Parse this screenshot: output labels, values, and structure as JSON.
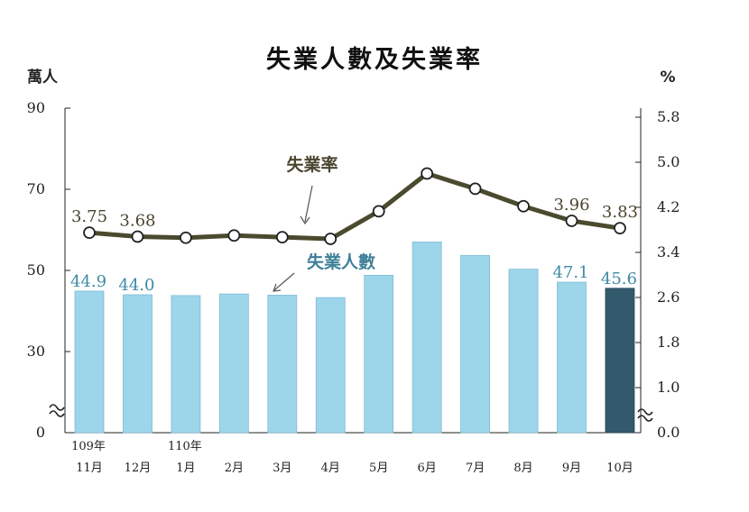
{
  "chart_data": {
    "type": "bar",
    "title": "失業人數及失業率",
    "ylabel_left": "萬人",
    "ylabel_right": "%",
    "left_axis": {
      "ylim": [
        0,
        90
      ],
      "ticks": [
        "0",
        "30",
        "50",
        "70",
        "90"
      ],
      "break": true
    },
    "right_axis": {
      "ylim": [
        0.0,
        5.8
      ],
      "ticks": [
        "0.0",
        "1.0",
        "1.8",
        "2.6",
        "3.4",
        "4.2",
        "5.0",
        "5.8"
      ],
      "break": true
    },
    "categories": [
      {
        "year": "109年",
        "month": "11月"
      },
      {
        "year": "",
        "month": "12月"
      },
      {
        "year": "110年",
        "month": "1月"
      },
      {
        "year": "",
        "month": "2月"
      },
      {
        "year": "",
        "month": "3月"
      },
      {
        "year": "",
        "month": "4月"
      },
      {
        "year": "",
        "month": "5月"
      },
      {
        "year": "",
        "month": "6月"
      },
      {
        "year": "",
        "month": "7月"
      },
      {
        "year": "",
        "month": "8月"
      },
      {
        "year": "",
        "month": "9月"
      },
      {
        "year": "",
        "month": "10月"
      }
    ],
    "series": [
      {
        "name": "失業人數",
        "type": "bar",
        "axis": "left",
        "values": [
          44.9,
          44.0,
          43.8,
          44.2,
          43.9,
          43.3,
          48.8,
          57.0,
          53.7,
          50.3,
          47.1,
          45.6
        ],
        "labels": [
          "44.9",
          "44.0",
          "",
          "",
          "",
          "",
          "",
          "",
          "",
          "",
          "47.1",
          "45.6"
        ],
        "color": "#9dd5ea",
        "highlight_color": "#33596c"
      },
      {
        "name": "失業率",
        "type": "line",
        "axis": "right",
        "values": [
          3.75,
          3.68,
          3.66,
          3.7,
          3.67,
          3.64,
          4.13,
          4.8,
          4.53,
          4.22,
          3.96,
          3.83
        ],
        "labels": [
          "3.75",
          "3.68",
          "",
          "",
          "",
          "",
          "",
          "",
          "",
          "",
          "3.96",
          "3.83"
        ],
        "color": "#4a4a2e"
      }
    ],
    "grid": false
  }
}
